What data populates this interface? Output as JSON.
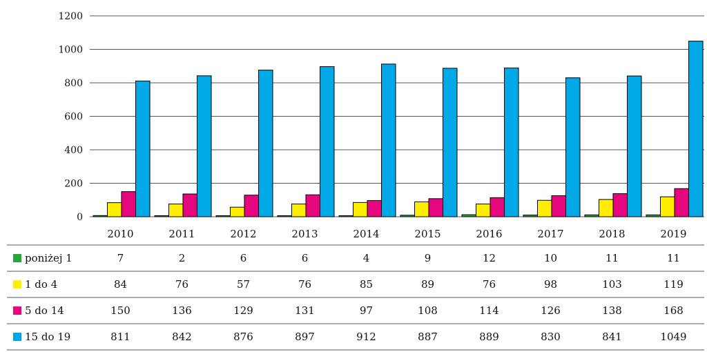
{
  "chart_data": {
    "type": "bar",
    "categories": [
      "2010",
      "2011",
      "2012",
      "2013",
      "2014",
      "2015",
      "2016",
      "2017",
      "2018",
      "2019"
    ],
    "series": [
      {
        "name": "poniżej 1",
        "color": "#2aa63a",
        "values": [
          7,
          2,
          6,
          6,
          4,
          9,
          12,
          10,
          11,
          11
        ]
      },
      {
        "name": "1 do 4",
        "color": "#ffee00",
        "values": [
          84,
          76,
          57,
          76,
          85,
          89,
          76,
          98,
          103,
          119
        ]
      },
      {
        "name": "5 do 14",
        "color": "#e6067e",
        "values": [
          150,
          136,
          129,
          131,
          97,
          108,
          114,
          126,
          138,
          168
        ]
      },
      {
        "name": "15 do 19",
        "color": "#00a9e6",
        "values": [
          811,
          842,
          876,
          897,
          912,
          887,
          889,
          830,
          841,
          1049
        ]
      }
    ],
    "yticks": [
      0,
      200,
      400,
      600,
      800,
      1000,
      1200
    ],
    "ylim": [
      0,
      1200
    ],
    "grid": true,
    "legend": "data-table-below"
  }
}
